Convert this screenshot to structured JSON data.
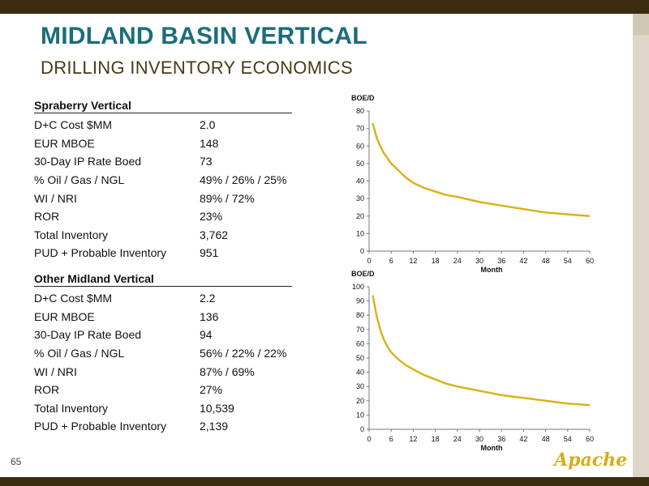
{
  "header": {
    "title": "MIDLAND BASIN VERTICAL",
    "subtitle": "DRILLING INVENTORY ECONOMICS"
  },
  "sections": [
    {
      "heading": "Spraberry Vertical",
      "rows": [
        {
          "label": "D+C Cost $MM",
          "value": "2.0"
        },
        {
          "label": "EUR MBOE",
          "value": "148"
        },
        {
          "label": "30-Day IP Rate Boed",
          "value": "73"
        },
        {
          "label": "% Oil / Gas / NGL",
          "value": "49% / 26% / 25%"
        },
        {
          "label": "WI / NRI",
          "value": "89% / 72%"
        },
        {
          "label": "ROR",
          "value": "23%"
        },
        {
          "label": "Total Inventory",
          "value": "3,762"
        },
        {
          "label": "PUD + Probable Inventory",
          "value": "951"
        }
      ]
    },
    {
      "heading": "Other Midland Vertical",
      "rows": [
        {
          "label": "D+C Cost $MM",
          "value": "2.2"
        },
        {
          "label": "EUR MBOE",
          "value": "136"
        },
        {
          "label": "30-Day IP Rate Boed",
          "value": "94"
        },
        {
          "label": "% Oil / Gas / NGL",
          "value": "56% / 22% / 22%"
        },
        {
          "label": "WI / NRI",
          "value": "87% / 69%"
        },
        {
          "label": "ROR",
          "value": "27%"
        },
        {
          "label": "Total Inventory",
          "value": "10,539"
        },
        {
          "label": "PUD + Probable Inventory",
          "value": "2,139"
        }
      ]
    }
  ],
  "page_number": "65",
  "logo_text": "Apache",
  "colors": {
    "title": "#1b6d7b",
    "subtitle": "#4a3a16",
    "curve": "#d9b21f",
    "bars": "#3b2c10"
  },
  "chart_data": [
    {
      "type": "line",
      "ylabel": "BOE/D",
      "xlabel": "Month",
      "xlim": [
        0,
        60
      ],
      "ylim": [
        0,
        80
      ],
      "xticks": [
        0,
        6,
        12,
        18,
        24,
        30,
        36,
        42,
        48,
        54,
        60
      ],
      "yticks": [
        0,
        10,
        20,
        30,
        40,
        50,
        60,
        70,
        80
      ],
      "x": [
        1,
        2,
        3,
        4,
        5,
        6,
        8,
        10,
        12,
        15,
        18,
        21,
        24,
        30,
        36,
        42,
        48,
        54,
        60
      ],
      "y": [
        73,
        65,
        60,
        56,
        53,
        50,
        46,
        42,
        39,
        36,
        34,
        32,
        31,
        28,
        26,
        24,
        22,
        21,
        20
      ]
    },
    {
      "type": "line",
      "ylabel": "BOE/D",
      "xlabel": "Month",
      "xlim": [
        0,
        60
      ],
      "ylim": [
        0,
        100
      ],
      "xticks": [
        0,
        6,
        12,
        18,
        24,
        30,
        36,
        42,
        48,
        54,
        60
      ],
      "yticks": [
        0,
        10,
        20,
        30,
        40,
        50,
        60,
        70,
        80,
        90,
        100
      ],
      "x": [
        1,
        2,
        3,
        4,
        5,
        6,
        8,
        10,
        12,
        15,
        18,
        21,
        24,
        30,
        36,
        42,
        48,
        54,
        60
      ],
      "y": [
        94,
        80,
        70,
        63,
        58,
        54,
        49,
        45,
        42,
        38,
        35,
        32,
        30,
        27,
        24,
        22,
        20,
        18,
        17
      ]
    }
  ]
}
